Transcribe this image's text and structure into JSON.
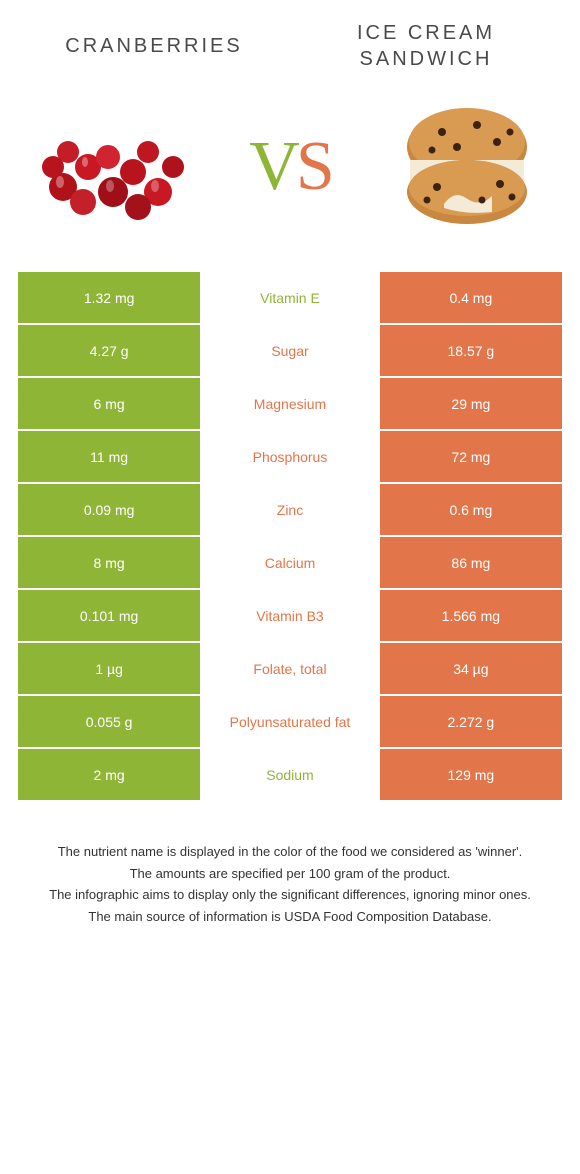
{
  "left": {
    "title": "CRANBERRIES",
    "color": "#8fb536"
  },
  "right": {
    "title": "ICE CREAM SANDWICH",
    "color": "#e2764a"
  },
  "vs": "VS",
  "rows": [
    {
      "left": "1.32 mg",
      "label": "Vitamin E",
      "right": "0.4 mg",
      "winner": "left"
    },
    {
      "left": "4.27 g",
      "label": "Sugar",
      "right": "18.57 g",
      "winner": "right"
    },
    {
      "left": "6 mg",
      "label": "Magnesium",
      "right": "29 mg",
      "winner": "right"
    },
    {
      "left": "11 mg",
      "label": "Phosphorus",
      "right": "72 mg",
      "winner": "right"
    },
    {
      "left": "0.09 mg",
      "label": "Zinc",
      "right": "0.6 mg",
      "winner": "right"
    },
    {
      "left": "8 mg",
      "label": "Calcium",
      "right": "86 mg",
      "winner": "right"
    },
    {
      "left": "0.101 mg",
      "label": "Vitamin B3",
      "right": "1.566 mg",
      "winner": "right"
    },
    {
      "left": "1 µg",
      "label": "Folate, total",
      "right": "34 µg",
      "winner": "right"
    },
    {
      "left": "0.055 g",
      "label": "Polyunsaturated fat",
      "right": "2.272 g",
      "winner": "right"
    },
    {
      "left": "2 mg",
      "label": "Sodium",
      "right": "129 mg",
      "winner": "left"
    }
  ],
  "footnotes": [
    "The nutrient name is displayed in the color of the food we considered as 'winner'.",
    "The amounts are specified per 100 gram of the product.",
    "The infographic aims to display only the significant differences, ignoring minor ones.",
    "The main source of information is USDA Food Composition Database."
  ]
}
